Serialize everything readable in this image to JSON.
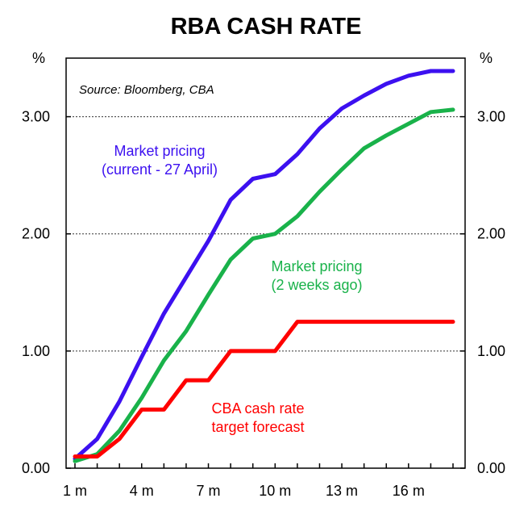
{
  "chart_data": {
    "type": "line",
    "title": "RBA CASH RATE",
    "source_note": "Source: Bloomberg, CBA",
    "y_unit_left": "%",
    "y_unit_right": "%",
    "xlabel": "",
    "ylabel": "%",
    "xlim": [
      1,
      19
    ],
    "ylim": [
      0,
      3.5
    ],
    "x_ticks": [
      1,
      4,
      7,
      10,
      13,
      16
    ],
    "x_tick_labels": [
      "1 m",
      "4 m",
      "7 m",
      "10 m",
      "13 m",
      "16 m"
    ],
    "y_ticks": [
      0,
      1,
      2,
      3
    ],
    "y_tick_labels": [
      "0.00",
      "1.00",
      "2.00",
      "3.00"
    ],
    "grid": "horizontal dashed",
    "x": [
      1,
      2,
      3,
      4,
      5,
      6,
      7,
      8,
      9,
      10,
      11,
      12,
      13,
      14,
      15,
      16,
      17,
      18,
      19
    ],
    "series": [
      {
        "name": "Market pricing (current - 27 April)",
        "color": "#3c10f0",
        "values": [
          0.08,
          0.25,
          0.57,
          0.95,
          1.32,
          1.63,
          1.94,
          2.29,
          2.47,
          2.51,
          2.68,
          2.9,
          3.07,
          3.18,
          3.28,
          3.35,
          3.39,
          3.39,
          null
        ]
      },
      {
        "name": "Market pricing (2 weeks ago)",
        "color": "#19b24a",
        "values": [
          0.06,
          0.12,
          0.32,
          0.6,
          0.92,
          1.17,
          1.48,
          1.78,
          1.96,
          2.0,
          2.15,
          2.36,
          2.55,
          2.73,
          2.84,
          2.94,
          3.04,
          3.06,
          null
        ]
      },
      {
        "name": "CBA cash rate target forecast",
        "color": "#ff0000",
        "values": [
          0.1,
          0.1,
          0.25,
          0.5,
          0.5,
          0.75,
          0.75,
          1.0,
          1.0,
          1.0,
          1.25,
          1.25,
          1.25,
          1.25,
          1.25,
          1.25,
          1.25,
          1.25,
          null
        ]
      }
    ],
    "annotations": [
      {
        "lines": [
          "Market pricing",
          "(current - 27 April)"
        ],
        "color": "#3c10f0"
      },
      {
        "lines": [
          "Market pricing",
          "(2 weeks ago)"
        ],
        "color": "#19b24a"
      },
      {
        "lines": [
          "CBA cash rate",
          "target forecast"
        ],
        "color": "#ff0000"
      }
    ]
  }
}
